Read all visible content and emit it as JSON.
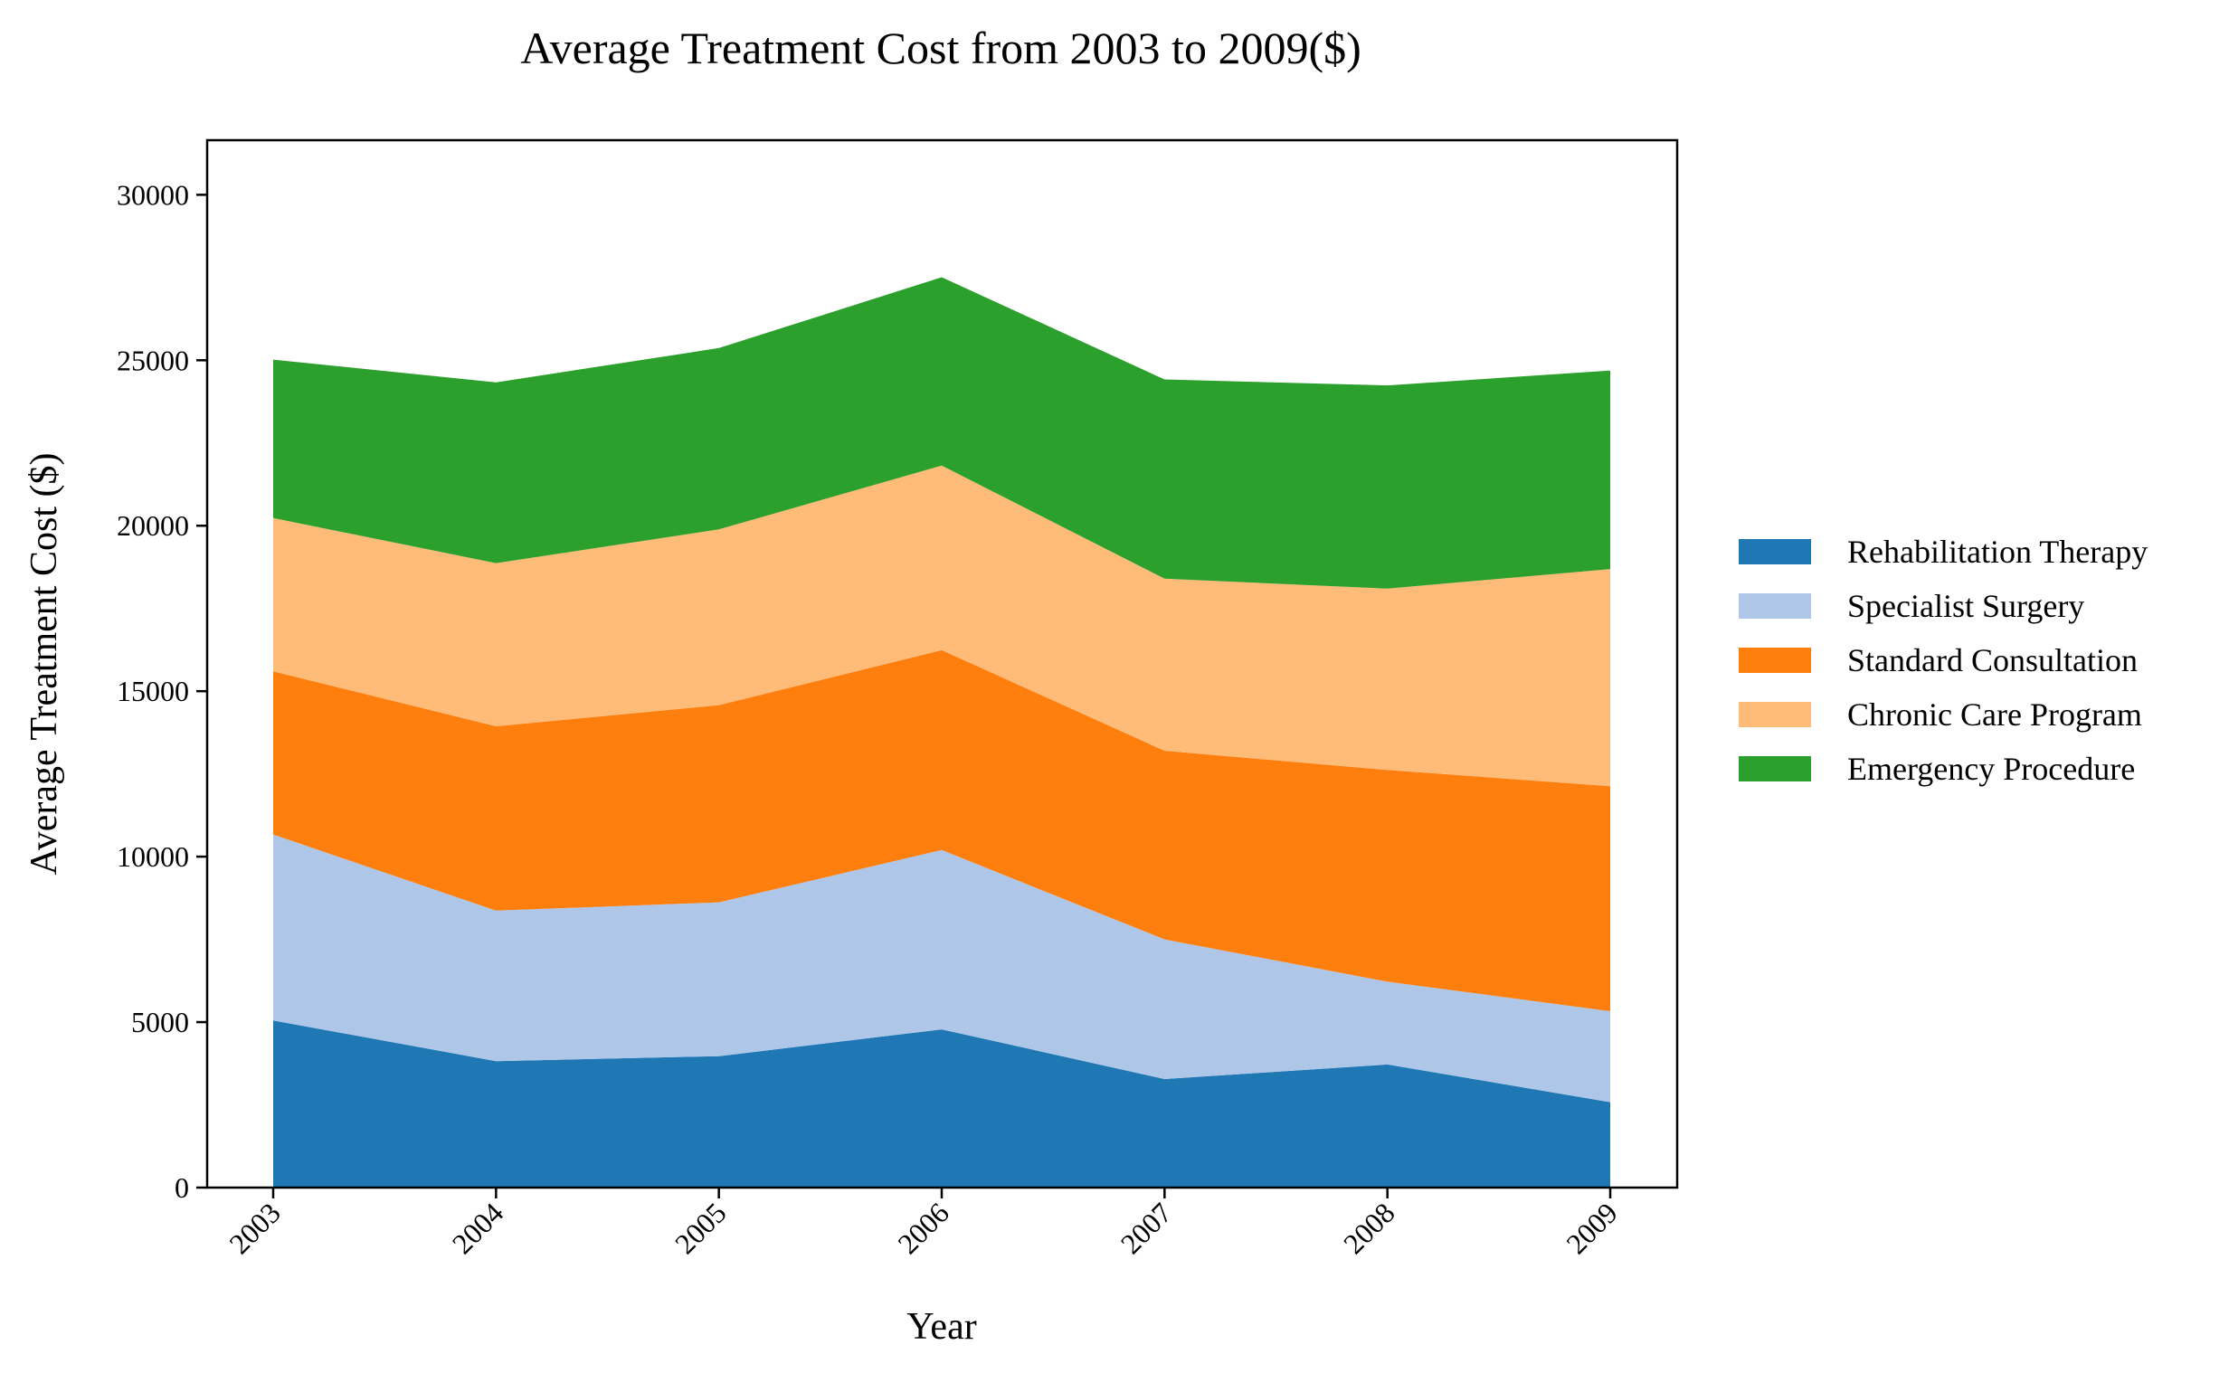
{
  "chart_data": {
    "type": "area",
    "stacked": true,
    "title": "Average Treatment Cost from 2003 to 2009($)",
    "xlabel": "Year",
    "ylabel": "Average Treatment Cost ($)",
    "categories": [
      "2003",
      "2004",
      "2005",
      "2006",
      "2007",
      "2008",
      "2009"
    ],
    "yticks": [
      "0",
      "5000",
      "10000",
      "15000",
      "20000",
      "25000",
      "30000"
    ],
    "ylim": [
      0,
      31650
    ],
    "grid": false,
    "legend_position": "right",
    "series": [
      {
        "name": "Rehabilitation Therapy",
        "color": "#1f77b4",
        "values": [
          5050,
          3820,
          3970,
          4780,
          3280,
          3720,
          2580
        ]
      },
      {
        "name": "Specialist Surgery",
        "color": "#aec7e8",
        "values": [
          5620,
          4550,
          4650,
          5420,
          4220,
          2500,
          2750
        ]
      },
      {
        "name": "Standard Consultation",
        "color": "#ff7f0e",
        "values": [
          4930,
          5570,
          5960,
          6040,
          5700,
          6400,
          6800
        ]
      },
      {
        "name": "Chronic Care Program",
        "color": "#ffbb78",
        "values": [
          4630,
          4930,
          5310,
          5580,
          5200,
          5480,
          6560
        ]
      },
      {
        "name": "Emergency Procedure",
        "color": "#2ca02c",
        "values": [
          4790,
          5460,
          5480,
          5690,
          6020,
          6140,
          6000
        ]
      }
    ]
  }
}
